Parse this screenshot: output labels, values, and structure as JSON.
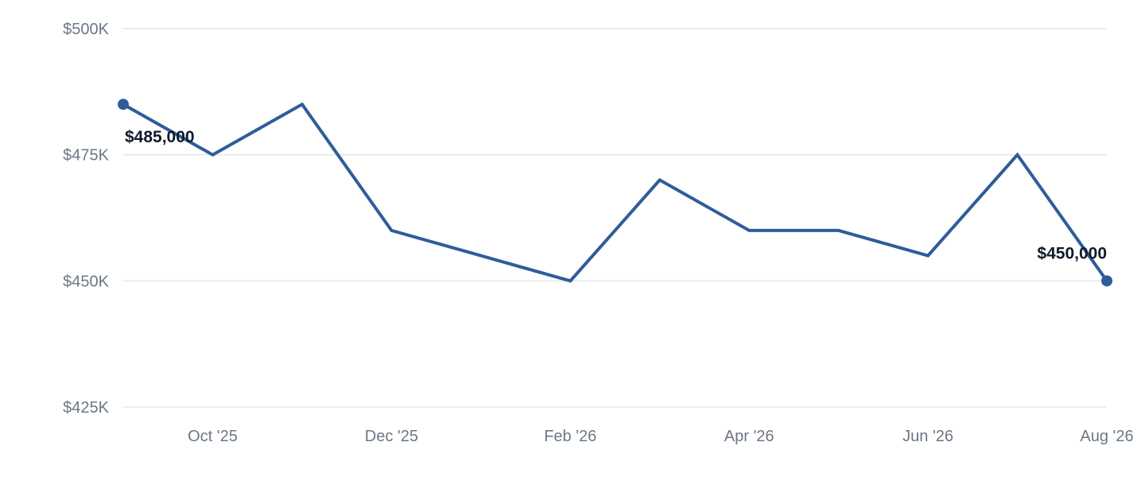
{
  "colors": {
    "line": "#2e5d99",
    "grid": "#e3e6ea",
    "tick_text": "#6b7785",
    "label_text": "#0f1b2a"
  },
  "chart_data": {
    "type": "line",
    "x": [
      "2025-09",
      "2025-10",
      "2025-11",
      "2025-12",
      "2026-01",
      "2026-02",
      "2026-03",
      "2026-04",
      "2026-05",
      "2026-06",
      "2026-07",
      "2026-08"
    ],
    "series": [
      {
        "values": [
          485000,
          475000,
          485000,
          460000,
          455000,
          450000,
          470000,
          460000,
          460000,
          455000,
          475000,
          450000
        ]
      }
    ],
    "ylim": [
      425000,
      500000
    ],
    "yticks": [
      {
        "value": 500000,
        "label": "$500K"
      },
      {
        "value": 475000,
        "label": "$475K"
      },
      {
        "value": 450000,
        "label": "$450K"
      },
      {
        "value": 425000,
        "label": "$425K"
      }
    ],
    "xticks": [
      {
        "index": 1,
        "label": "Oct '25"
      },
      {
        "index": 3,
        "label": "Dec '25"
      },
      {
        "index": 5,
        "label": "Feb '26"
      },
      {
        "index": 7,
        "label": "Apr '26"
      },
      {
        "index": 9,
        "label": "Jun '26"
      },
      {
        "index": 11,
        "label": "Aug '26"
      }
    ],
    "annotations": [
      {
        "index": 0,
        "label": "$485,000",
        "marker": true
      },
      {
        "index": 11,
        "label": "$450,000",
        "marker": true
      }
    ],
    "grid": true,
    "legend": "none"
  }
}
